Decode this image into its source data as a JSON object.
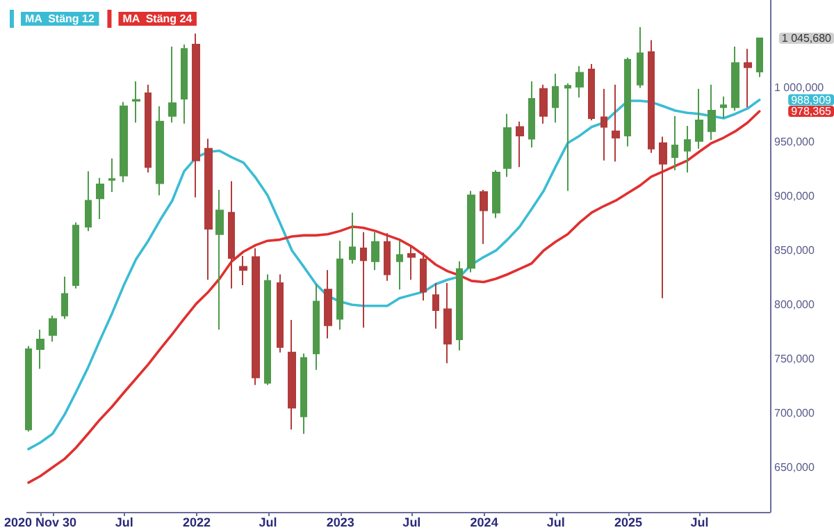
{
  "chart_data": {
    "type": "candlestick",
    "x": [
      "2020-10-31",
      "2020-11-30",
      "2020-12-31",
      "2021-01-31",
      "2021-02-28",
      "2021-03-31",
      "2021-04-30",
      "2021-05-31",
      "2021-06-30",
      "2021-07-31",
      "2021-08-31",
      "2021-09-30",
      "2021-10-31",
      "2021-11-30",
      "2021-12-31",
      "2022-01-31",
      "2022-02-28",
      "2022-03-31",
      "2022-04-30",
      "2022-05-31",
      "2022-06-30",
      "2022-07-31",
      "2022-08-31",
      "2022-09-30",
      "2022-10-31",
      "2022-11-30",
      "2022-12-31",
      "2023-01-31",
      "2023-02-28",
      "2023-03-31",
      "2023-04-30",
      "2023-05-31",
      "2023-06-30",
      "2023-07-31",
      "2023-08-31",
      "2023-09-30",
      "2023-10-31",
      "2023-11-30",
      "2023-12-31",
      "2024-01-31",
      "2024-02-29",
      "2024-03-31",
      "2024-04-30",
      "2024-05-31",
      "2024-06-30",
      "2024-07-31",
      "2024-08-31",
      "2024-09-30",
      "2024-10-31",
      "2024-11-30",
      "2024-12-31",
      "2025-01-31",
      "2025-02-28",
      "2025-03-31",
      "2025-04-30",
      "2025-05-31",
      "2025-06-30",
      "2025-07-31",
      "2025-08-31",
      "2025-09-30",
      "2025-10-31",
      "2025-11-30"
    ],
    "ohlc": [
      [
        685000,
        762000,
        683000,
        759000
      ],
      [
        759000,
        777000,
        741000,
        768000
      ],
      [
        772000,
        790000,
        766000,
        787000
      ],
      [
        790000,
        826000,
        787000,
        810000
      ],
      [
        818000,
        876000,
        815000,
        873000
      ],
      [
        872000,
        923000,
        868000,
        896000
      ],
      [
        898000,
        917000,
        879000,
        911000
      ],
      [
        915000,
        935000,
        904000,
        916000
      ],
      [
        919000,
        987000,
        913000,
        983000
      ],
      [
        988000,
        1006000,
        968000,
        989000
      ],
      [
        995000,
        1003000,
        922000,
        927000
      ],
      [
        912000,
        983000,
        901000,
        969000
      ],
      [
        974000,
        1038000,
        968000,
        986000
      ],
      [
        990000,
        1040000,
        967000,
        1036000
      ],
      [
        1040000,
        1050000,
        899000,
        933000
      ],
      [
        944000,
        953000,
        823000,
        870000
      ],
      [
        865000,
        906000,
        777000,
        887000
      ],
      [
        885000,
        914000,
        815000,
        843000
      ],
      [
        835000,
        845000,
        818000,
        832000
      ],
      [
        844000,
        852000,
        726000,
        733000
      ],
      [
        728000,
        828000,
        726000,
        822000
      ],
      [
        820000,
        828000,
        756000,
        761000
      ],
      [
        756000,
        786000,
        685000,
        705000
      ],
      [
        697000,
        755000,
        681000,
        751000
      ],
      [
        755000,
        819000,
        740000,
        803000
      ],
      [
        814000,
        832000,
        769000,
        781000
      ],
      [
        787000,
        859000,
        777000,
        842000
      ],
      [
        842000,
        885000,
        838000,
        853000
      ],
      [
        852000,
        867000,
        779000,
        841000
      ],
      [
        840000,
        867000,
        832000,
        858000
      ],
      [
        858000,
        866000,
        822000,
        828000
      ],
      [
        840000,
        859000,
        814000,
        846000
      ],
      [
        847000,
        854000,
        823000,
        844000
      ],
      [
        842000,
        848000,
        804000,
        812000
      ],
      [
        809000,
        820000,
        778000,
        795000
      ],
      [
        796000,
        820000,
        746000,
        764000
      ],
      [
        768000,
        840000,
        758000,
        833000
      ],
      [
        834000,
        905000,
        830000,
        901000
      ],
      [
        904000,
        906000,
        856000,
        887000
      ],
      [
        885000,
        924000,
        880000,
        922000
      ],
      [
        926000,
        976000,
        918000,
        963000
      ],
      [
        964000,
        969000,
        927000,
        956000
      ],
      [
        953000,
        1006000,
        945000,
        990000
      ],
      [
        999000,
        1003000,
        967000,
        974000
      ],
      [
        982000,
        1013000,
        968000,
        1001000
      ],
      [
        1000000,
        1004000,
        905000,
        1002000
      ],
      [
        1001000,
        1020000,
        991000,
        1014000
      ],
      [
        1017000,
        1022000,
        970000,
        972000
      ],
      [
        973000,
        999000,
        933000,
        964000
      ],
      [
        960000,
        1003000,
        932000,
        954000
      ],
      [
        956000,
        1028000,
        946000,
        1026000
      ],
      [
        1003000,
        1056000,
        1000000,
        1032000
      ],
      [
        1033000,
        1044000,
        940000,
        944000
      ],
      [
        949000,
        955000,
        806000,
        930000
      ],
      [
        936000,
        974000,
        924000,
        947000
      ],
      [
        942000,
        965000,
        922000,
        952000
      ],
      [
        951000,
        999000,
        944000,
        970000
      ],
      [
        960000,
        1003000,
        952000,
        979000
      ],
      [
        982000,
        992000,
        972000,
        984000
      ],
      [
        982000,
        1038000,
        979000,
        1023000
      ],
      [
        1023000,
        1036000,
        982000,
        1019000
      ],
      [
        1015000,
        1046000,
        1010000,
        1045680
      ]
    ],
    "series": [
      {
        "type": "line",
        "name": "MA  Stäng 12",
        "color": "#3bbcd4",
        "values": [
          667000,
          673000,
          681000,
          699000,
          719000,
          742000,
          767000,
          792000,
          818000,
          842000,
          859000,
          878000,
          896000,
          923000,
          936000,
          941000,
          942000,
          936000,
          931000,
          917000,
          901000,
          876000,
          850000,
          835000,
          819000,
          808000,
          803000,
          800000,
          799000,
          799000,
          799000,
          806000,
          809000,
          812000,
          819000,
          823000,
          826000,
          837000,
          844000,
          850000,
          860000,
          872000,
          888000,
          905000,
          927000,
          949000,
          956000,
          964000,
          968000,
          978000,
          988000,
          988000,
          987000,
          983000,
          979000,
          977000,
          976000,
          974000,
          972000,
          976000,
          981000,
          988909
        ]
      },
      {
        "type": "line",
        "name": "MA  Stäng 24",
        "color": "#e03030",
        "values": [
          636000,
          642000,
          650000,
          658000,
          668000,
          681000,
          694000,
          706000,
          719000,
          732000,
          745000,
          759000,
          773000,
          787000,
          801000,
          812000,
          824000,
          840000,
          849000,
          855000,
          859000,
          860000,
          863000,
          864000,
          864000,
          865000,
          868000,
          872000,
          871000,
          868000,
          864000,
          860000,
          854000,
          846000,
          837000,
          831000,
          827000,
          822000,
          821000,
          824000,
          828000,
          833000,
          838000,
          850000,
          858000,
          865000,
          876000,
          885000,
          891000,
          896000,
          903000,
          910000,
          918000,
          923000,
          928000,
          933000,
          941000,
          949000,
          954000,
          960000,
          968000,
          978365
        ]
      }
    ],
    "xlim": [
      "2020-10-27",
      "2025-12-27"
    ],
    "xticks": [
      {
        "value": "2020-11-30",
        "label": "2020 Nov 30"
      },
      {
        "value": "2021-01-01",
        "label": null
      },
      {
        "value": "2021-07-01",
        "label": "Jul"
      },
      {
        "value": "2022-01-01",
        "label": "2022"
      },
      {
        "value": "2022-07-01",
        "label": "Jul"
      },
      {
        "value": "2023-01-01",
        "label": "2023"
      },
      {
        "value": "2023-07-01",
        "label": "Jul"
      },
      {
        "value": "2024-01-01",
        "label": "2024"
      },
      {
        "value": "2024-07-01",
        "label": "Jul"
      },
      {
        "value": "2025-01-01",
        "label": "2025"
      },
      {
        "value": "2025-07-01",
        "label": "Jul"
      }
    ],
    "ylim": [
      609000,
      1081000
    ],
    "yticks": [
      {
        "value": 650000,
        "label": "650,000"
      },
      {
        "value": 700000,
        "label": "700,000"
      },
      {
        "value": 750000,
        "label": "750,000"
      },
      {
        "value": 800000,
        "label": "800,000"
      },
      {
        "value": 850000,
        "label": "850,000"
      },
      {
        "value": 900000,
        "label": "900,000"
      },
      {
        "value": 950000,
        "label": "950,000"
      },
      {
        "value": 1000000,
        "label": "1 000,000"
      }
    ],
    "annotations": [
      {
        "text": "1 045,680",
        "x": "2025-11-30",
        "y": 1045680
      },
      {
        "text": "988,909",
        "x": "2025-11-30",
        "y": 988909
      },
      {
        "text": "978,365",
        "x": "2025-11-30",
        "y": 978365
      }
    ],
    "grid": false,
    "legend": "top left",
    "marker": "none",
    "line_style": "solid"
  }
}
